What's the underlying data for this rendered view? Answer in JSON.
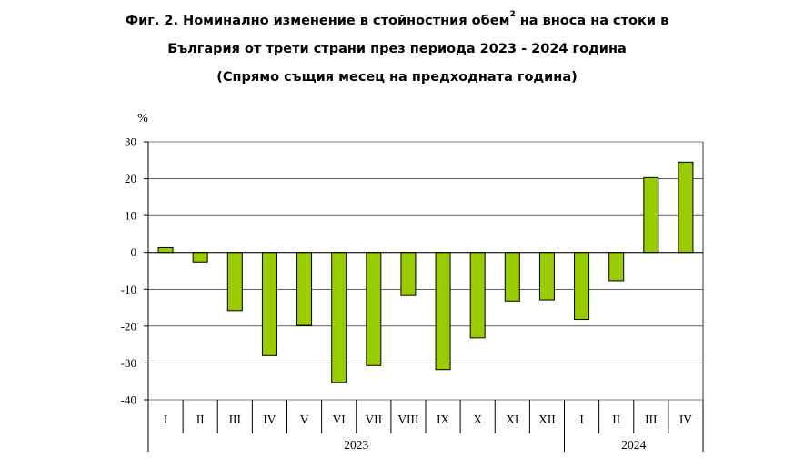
{
  "title": {
    "line1_main": "Фиг. 2. Номинално изменение в стойностния обем",
    "line1_sup": "2",
    "line1_rest": " на вноса на стоки в",
    "line2": "България от трети страни през периода 2023 - 2024 година",
    "line3": "(Спрямо същия месец на предходната година)"
  },
  "colors": {
    "bar_fill": "#99CC00",
    "bar_stroke": "#000000",
    "grid": "#000000",
    "axis": "#000000"
  },
  "chart_data": {
    "type": "bar",
    "ylabel": "%",
    "ylim": [
      -40,
      30
    ],
    "yticks": [
      30,
      20,
      10,
      0,
      -10,
      -20,
      -30,
      -40
    ],
    "grid": true,
    "categories": [
      "I",
      "II",
      "III",
      "IV",
      "V",
      "VI",
      "VII",
      "VIII",
      "IX",
      "X",
      "XI",
      "XII",
      "I",
      "II",
      "III",
      "IV"
    ],
    "groups": [
      {
        "label": "2023",
        "count": 12
      },
      {
        "label": "2024",
        "count": 4
      }
    ],
    "values": [
      1.3,
      -2.6,
      -15.8,
      -28.0,
      -19.8,
      -35.3,
      -30.7,
      -11.7,
      -31.8,
      -23.2,
      -13.2,
      -12.9,
      -18.2,
      -7.7,
      20.3,
      24.5
    ]
  }
}
